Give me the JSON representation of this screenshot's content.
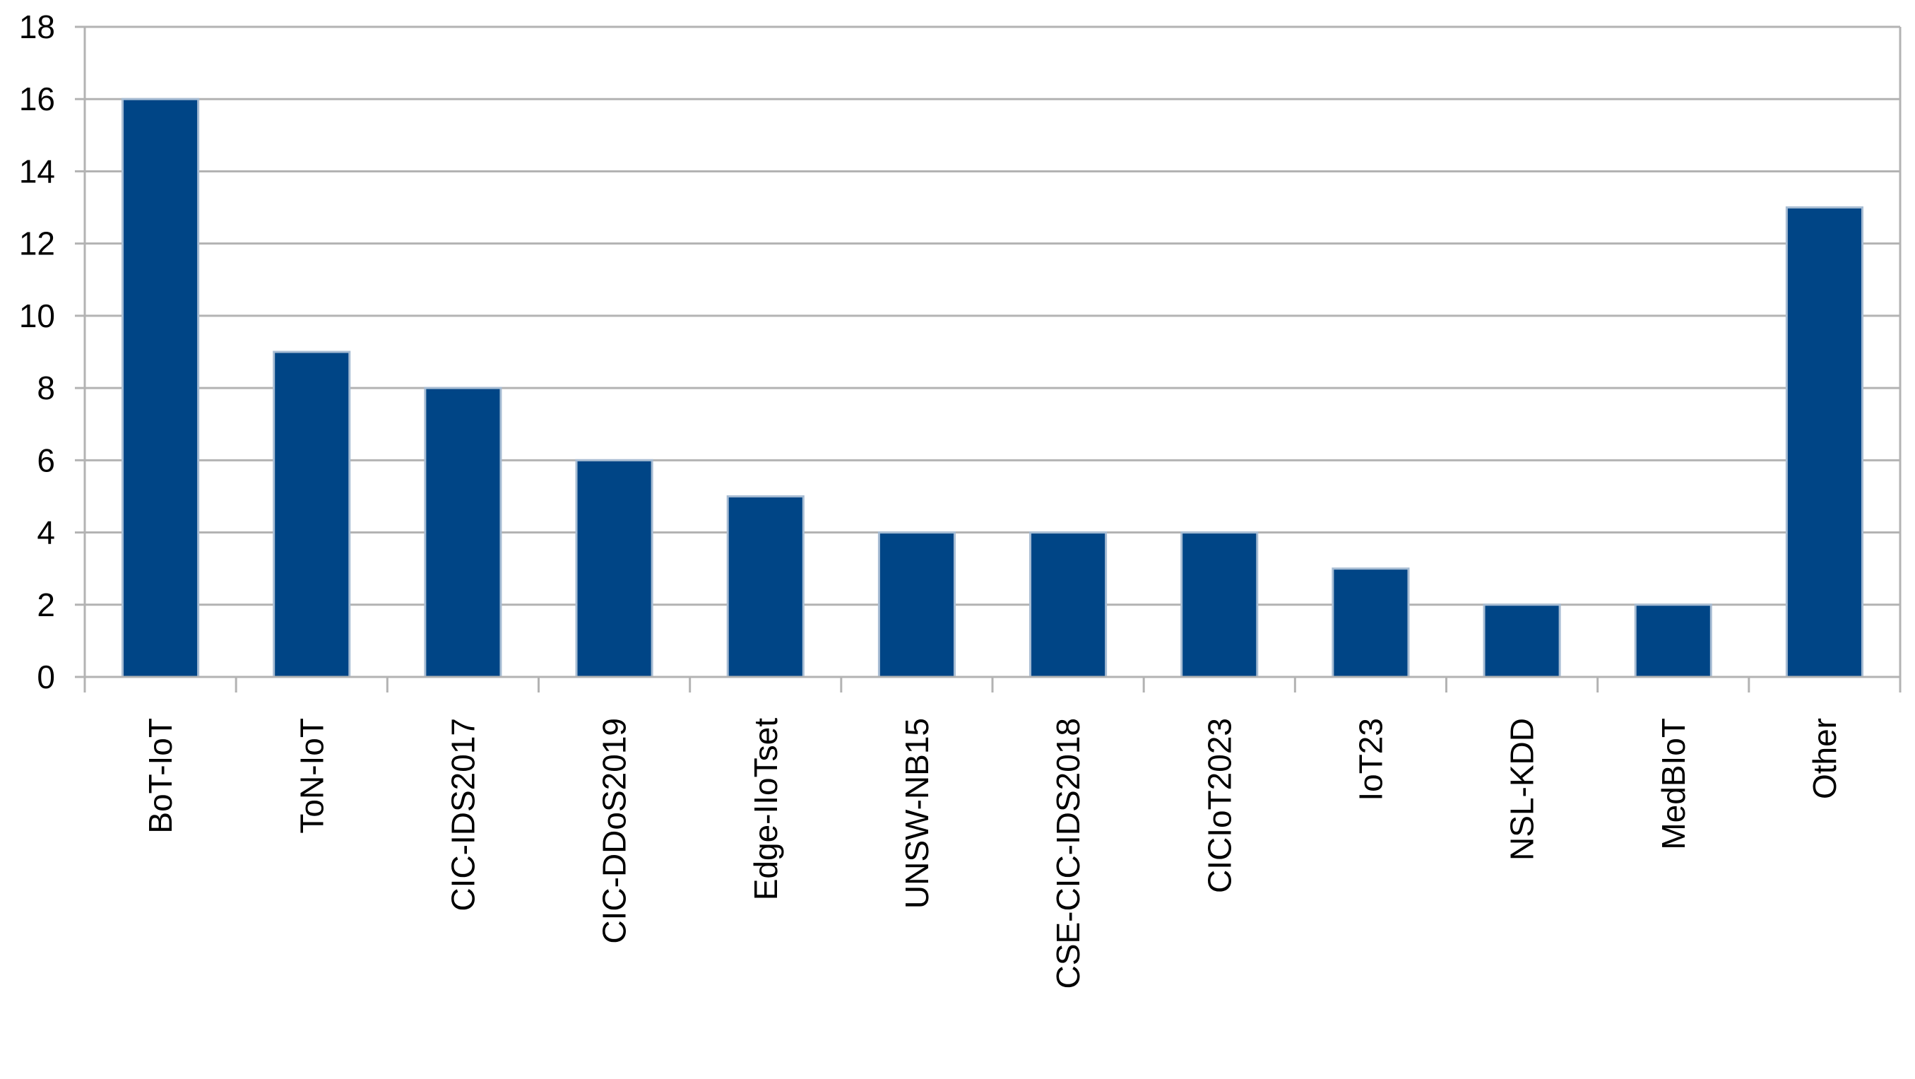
{
  "chart_data": {
    "type": "bar",
    "title": "",
    "xlabel": "",
    "ylabel": "",
    "categories": [
      "BoT-IoT",
      "ToN-IoT",
      "CIC-IDS2017",
      "CIC-DDoS2019",
      "Edge-IIoTset",
      "UNSW-NB15",
      "CSE-CIC-IDS2018",
      "CICIoT2023",
      "IoT23",
      "NSL-KDD",
      "MedBIoT",
      "Other"
    ],
    "values": [
      16,
      9,
      8,
      6,
      5,
      4,
      4,
      4,
      3,
      2,
      2,
      13
    ],
    "ylim": [
      0,
      18
    ],
    "yticks": [
      "0",
      "2",
      "4",
      "6",
      "8",
      "10",
      "12",
      "14",
      "16",
      "18"
    ],
    "grid": true,
    "legend": "none",
    "colors": {
      "bar": "#004586",
      "bar_edge": "#a7bcd3",
      "grid": "#b3b3b3",
      "axis": "#b3b3b3",
      "text": "#000000"
    }
  }
}
